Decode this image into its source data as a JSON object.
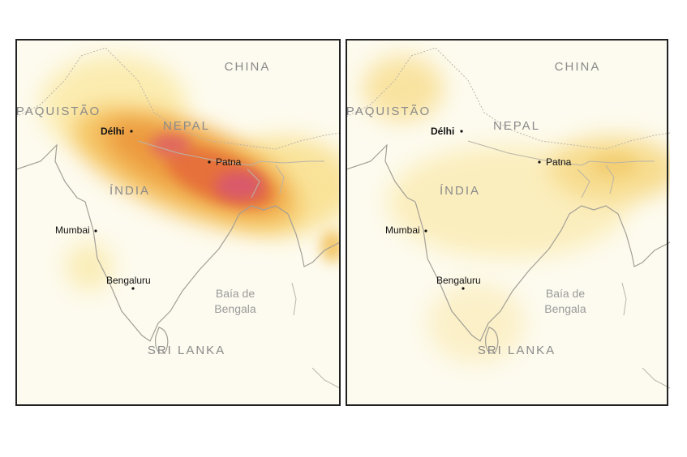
{
  "maps": [
    {
      "labels": {
        "china": "CHINA",
        "pakistan": "PAQUISTÃO",
        "nepal": "NEPAL",
        "delhi": "Délhi",
        "patna": "Patna",
        "india": "ÍNDIA",
        "mumbai": "Mumbai",
        "bengaluru": "Bengaluru",
        "bay_line1": "Baía de",
        "bay_line2": "Bengala",
        "sri_lanka": "SRI LANKA"
      }
    },
    {
      "labels": {
        "china": "CHINA",
        "pakistan": "PAQUISTÃO",
        "nepal": "NEPAL",
        "delhi": "Délhi",
        "patna": "Patna",
        "india": "ÍNDIA",
        "mumbai": "Mumbai",
        "bengaluru": "Bengaluru",
        "bay_line1": "Baía de",
        "bay_line2": "Bengala",
        "sri_lanka": "SRI LANKA"
      }
    }
  ]
}
